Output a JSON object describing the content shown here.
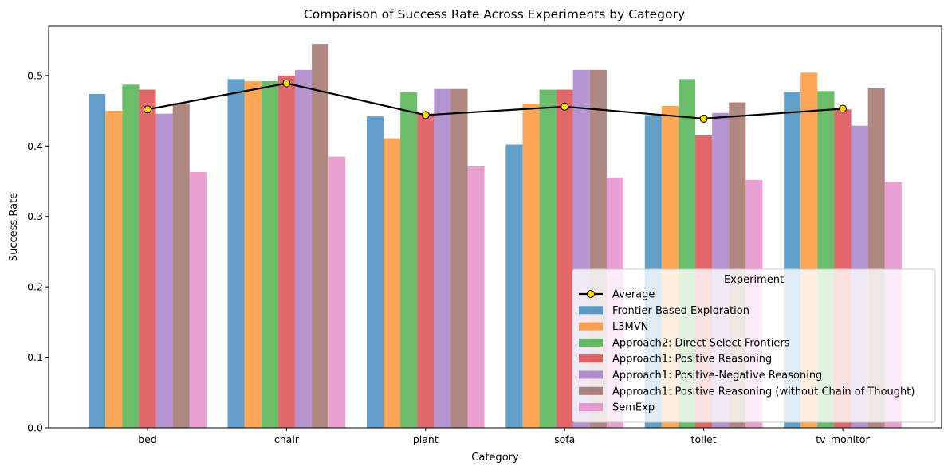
{
  "chart_data": {
    "type": "bar",
    "title": "Comparison of Success Rate Across Experiments by Category",
    "xlabel": "Category",
    "ylabel": "Success Rate",
    "ylim": [
      0,
      0.57
    ],
    "yticks": [
      "0.0",
      "0.1",
      "0.2",
      "0.3",
      "0.4",
      "0.5"
    ],
    "grid": false,
    "legend_title": "Experiment",
    "legend_position": "lower-right",
    "categories": [
      "bed",
      "chair",
      "plant",
      "sofa",
      "toilet",
      "tv_monitor"
    ],
    "series": [
      {
        "name": "Frontier Based Exploration",
        "color": "#1f77b4",
        "values": [
          0.474,
          0.495,
          0.442,
          0.402,
          0.444,
          0.477
        ]
      },
      {
        "name": "L3MVN",
        "color": "#ff7f0e",
        "values": [
          0.45,
          0.492,
          0.411,
          0.46,
          0.457,
          0.504
        ]
      },
      {
        "name": "Approach2: Direct Select Frontiers",
        "color": "#2ca02c",
        "values": [
          0.487,
          0.492,
          0.476,
          0.48,
          0.495,
          0.478
        ]
      },
      {
        "name": "Approach1: Positive Reasoning",
        "color": "#d62728",
        "values": [
          0.48,
          0.5,
          0.446,
          0.48,
          0.415,
          0.452
        ]
      },
      {
        "name": "Approach1: Positive-Negative Reasoning",
        "color": "#9467bd",
        "values": [
          0.446,
          0.508,
          0.481,
          0.508,
          0.447,
          0.429
        ]
      },
      {
        "name": "Approach1: Positive Reasoning (without Chain of Thought)",
        "color": "#8c564b",
        "values": [
          0.461,
          0.545,
          0.481,
          0.508,
          0.462,
          0.482
        ]
      },
      {
        "name": "SemExp",
        "color": "#e377c2",
        "values": [
          0.363,
          0.385,
          0.371,
          0.355,
          0.352,
          0.349
        ]
      }
    ],
    "average": {
      "name": "Average",
      "line_color": "#000000",
      "marker_color": "#ffd700",
      "values": [
        0.452,
        0.489,
        0.444,
        0.456,
        0.439,
        0.453
      ]
    }
  }
}
